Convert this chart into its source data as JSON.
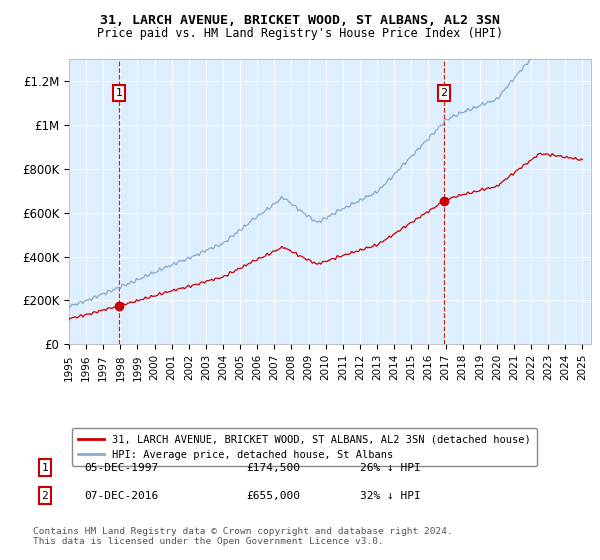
{
  "title1": "31, LARCH AVENUE, BRICKET WOOD, ST ALBANS, AL2 3SN",
  "title2": "Price paid vs. HM Land Registry's House Price Index (HPI)",
  "legend_label_red": "31, LARCH AVENUE, BRICKET WOOD, ST ALBANS, AL2 3SN (detached house)",
  "legend_label_blue": "HPI: Average price, detached house, St Albans",
  "annotation1_date": "05-DEC-1997",
  "annotation1_price": "£174,500",
  "annotation1_hpi": "26% ↓ HPI",
  "annotation2_date": "07-DEC-2016",
  "annotation2_price": "£655,000",
  "annotation2_hpi": "32% ↓ HPI",
  "footer": "Contains HM Land Registry data © Crown copyright and database right 2024.\nThis data is licensed under the Open Government Licence v3.0.",
  "plot_bg_color": "#ddeeff",
  "red_color": "#cc0000",
  "blue_color": "#88aacc",
  "vline_color": "#cc0000",
  "annotation_box_color": "#cc0000",
  "ylim": [
    0,
    1300000
  ],
  "yticks": [
    0,
    200000,
    400000,
    600000,
    800000,
    1000000,
    1200000
  ],
  "ytick_labels": [
    "£0",
    "£200K",
    "£400K",
    "£600K",
    "£800K",
    "£1M",
    "£1.2M"
  ],
  "sale1_year": 1997.92,
  "sale1_price": 174500,
  "sale2_year": 2016.92,
  "sale2_price": 655000
}
